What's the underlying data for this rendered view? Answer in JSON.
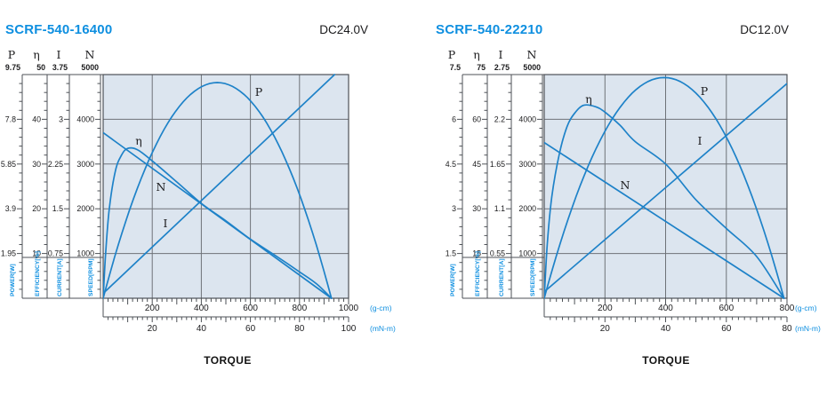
{
  "colors": {
    "accent_blue": "#0e8fe0",
    "curve_blue": "#1e82c8",
    "plot_bg": "#dce5ef",
    "grid": "#6e7278",
    "frame": "#4e5257",
    "text": "#1c1c1e"
  },
  "chart_data": [
    {
      "type": "line",
      "model": "SCRF-540-16400",
      "voltage": "DC24.0V",
      "stall_torque_gcm": 930,
      "no_load_speed_rpm": 3700,
      "x_axis": {
        "title": "TORQUE",
        "primary": {
          "unit": "(g-cm)",
          "max": 1000,
          "major_step": 200,
          "labels": [
            "200",
            "400",
            "600",
            "800",
            "1000"
          ]
        },
        "secondary": {
          "unit": "(mN-m)",
          "max": 100,
          "major_step": 20,
          "labels": [
            "20",
            "40",
            "60",
            "80",
            "100"
          ]
        }
      },
      "y_axes": [
        {
          "id": "P",
          "header": "P",
          "label": "POWER[W]",
          "max": 9.75,
          "tick_labels": [
            "9.75",
            "7.8",
            "5.85",
            "3.9",
            "1.95"
          ]
        },
        {
          "id": "eta",
          "header": "η",
          "label": "EFFICIENCY[%]",
          "max": 50,
          "tick_labels": [
            "50",
            "40",
            "30",
            "20",
            "10"
          ]
        },
        {
          "id": "I",
          "header": "I",
          "label": "CURRENT[A]",
          "max": 3.75,
          "tick_labels": [
            "3.75",
            "3",
            "2.25",
            "1.5",
            "0.75"
          ]
        },
        {
          "id": "N",
          "header": "N",
          "label": "SPEED[RPM]",
          "max": 5000,
          "tick_labels": [
            "5000",
            "4000",
            "3000",
            "2000",
            "1000"
          ]
        }
      ],
      "series": [
        {
          "id": "P",
          "label": "P",
          "axis": "P",
          "shape": "parabola",
          "zeros": [
            0,
            930
          ],
          "peak": 9.4
        },
        {
          "id": "eta",
          "label": "η",
          "axis": "eta",
          "shape": "spline",
          "points": [
            [
              0,
              0
            ],
            [
              10,
              10
            ],
            [
              25,
              20
            ],
            [
              50,
              28.5
            ],
            [
              75,
              32
            ],
            [
              100,
              33.5
            ],
            [
              140,
              33.2
            ],
            [
              200,
              30.7
            ],
            [
              300,
              26
            ],
            [
              400,
              21.2
            ],
            [
              500,
              17.3
            ],
            [
              600,
              13.2
            ],
            [
              700,
              9.6
            ],
            [
              800,
              5.9
            ],
            [
              870,
              3.2
            ],
            [
              930,
              0
            ]
          ]
        },
        {
          "id": "N",
          "label": "N",
          "axis": "N",
          "shape": "line",
          "points": [
            [
              0,
              3700
            ],
            [
              930,
              0
            ]
          ]
        },
        {
          "id": "I",
          "label": "I",
          "axis": "I",
          "shape": "line",
          "points": [
            [
              0,
              0.08
            ],
            [
              943,
              3.75
            ]
          ]
        }
      ]
    },
    {
      "type": "line",
      "model": "SCRF-540-22210",
      "voltage": "DC12.0V",
      "stall_torque_gcm": 790,
      "no_load_speed_rpm": 3480,
      "x_axis": {
        "title": "TORQUE",
        "primary": {
          "unit": "(g-cm)",
          "max": 800,
          "major_step": 200,
          "labels": [
            "200",
            "400",
            "600",
            "800"
          ]
        },
        "secondary": {
          "unit": "(mN-m)",
          "max": 80,
          "major_step": 20,
          "labels": [
            "20",
            "40",
            "60",
            "80"
          ]
        }
      },
      "y_axes": [
        {
          "id": "P",
          "header": "P",
          "label": "POWER[W]",
          "max": 7.5,
          "tick_labels": [
            "7.5",
            "6",
            "4.5",
            "3",
            "1.5"
          ]
        },
        {
          "id": "eta",
          "header": "η",
          "label": "EFFICIENCY[%]",
          "max": 75,
          "tick_labels": [
            "75",
            "60",
            "45",
            "30",
            "15"
          ]
        },
        {
          "id": "I",
          "header": "I",
          "label": "CURRENT[A]",
          "max": 2.75,
          "tick_labels": [
            "2.75",
            "2.2",
            "1.65",
            "1.1",
            "0.55"
          ]
        },
        {
          "id": "N",
          "header": "N",
          "label": "SPEED[RPM]",
          "max": 5000,
          "tick_labels": [
            "5000",
            "4000",
            "3000",
            "2000",
            "1000"
          ]
        }
      ],
      "series": [
        {
          "id": "P",
          "label": "P",
          "axis": "P",
          "shape": "parabola",
          "zeros": [
            0,
            790
          ],
          "peak": 7.4
        },
        {
          "id": "eta",
          "label": "η",
          "axis": "eta",
          "shape": "spline",
          "points": [
            [
              0,
              0
            ],
            [
              10,
              18
            ],
            [
              25,
              34
            ],
            [
              50,
              48.5
            ],
            [
              75,
              57.5
            ],
            [
              100,
              62
            ],
            [
              130,
              64.7
            ],
            [
              170,
              64.2
            ],
            [
              200,
              62.4
            ],
            [
              250,
              58
            ],
            [
              300,
              52.5
            ],
            [
              400,
              45
            ],
            [
              500,
              33
            ],
            [
              600,
              23.4
            ],
            [
              700,
              14
            ],
            [
              790,
              0
            ]
          ]
        },
        {
          "id": "N",
          "label": "N",
          "axis": "N",
          "shape": "line",
          "points": [
            [
              0,
              3480
            ],
            [
              790,
              0
            ]
          ]
        },
        {
          "id": "I",
          "label": "I",
          "axis": "I",
          "shape": "line",
          "points": [
            [
              0,
              0.08
            ],
            [
              800,
              2.64
            ]
          ]
        }
      ]
    }
  ]
}
